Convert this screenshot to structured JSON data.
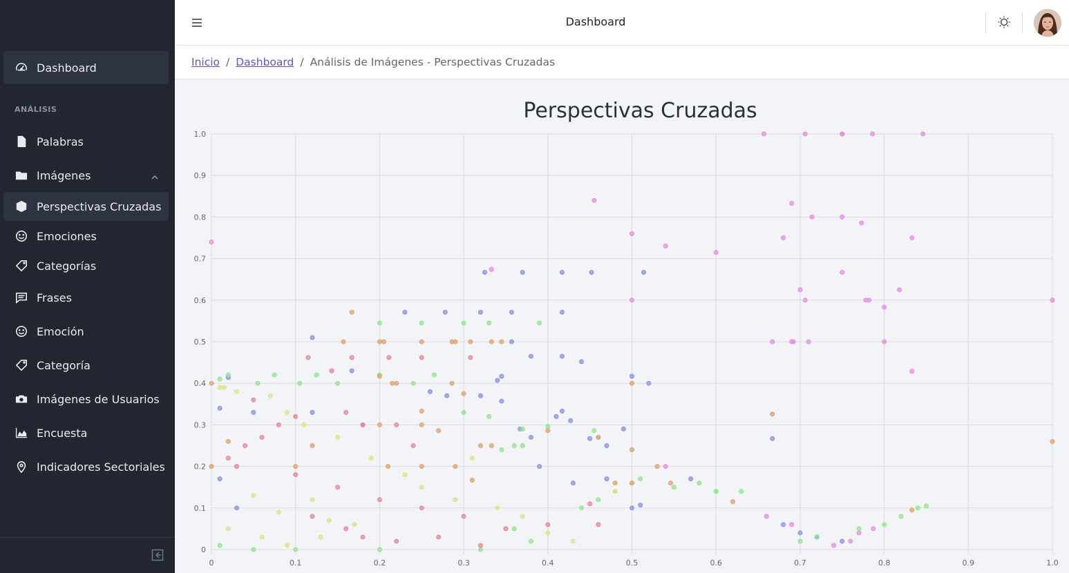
{
  "header": {
    "title": "Dashboard",
    "menu_icon": "hamburger-icon",
    "theme_icon": "sun-icon",
    "avatar": "user-avatar"
  },
  "breadcrumb": {
    "items": [
      {
        "label": "Inicio",
        "link": true
      },
      {
        "label": "Dashboard",
        "link": true
      },
      {
        "label": "Análisis de Imágenes - Perspectivas Cruzadas",
        "link": false
      }
    ]
  },
  "sidebar": {
    "dashboard": {
      "label": "Dashboard",
      "icon": "speedometer-icon"
    },
    "section_title": "ANÁLISIS",
    "items": [
      {
        "label": "Palabras",
        "icon": "file-icon"
      },
      {
        "label": "Imágenes",
        "icon": "folder-icon"
      },
      {
        "label": "Perspectivas Cruzadas",
        "icon": "cube-icon"
      },
      {
        "label": "Emociones",
        "icon": "smile-icon"
      },
      {
        "label": "Categorías",
        "icon": "tag-icon"
      },
      {
        "label": "Frases",
        "icon": "comment-icon"
      },
      {
        "label": "Emoción",
        "icon": "smile-icon"
      },
      {
        "label": "Categoría",
        "icon": "tag-icon"
      },
      {
        "label": "Imágenes de Usuarios",
        "icon": "camera-icon"
      },
      {
        "label": "Encuesta",
        "icon": "area-chart-icon"
      },
      {
        "label": "Indicadores Sectoriales",
        "icon": "location-pin-icon"
      }
    ],
    "toggler_icon": "collapse-sidebar-icon"
  },
  "colors": {
    "sidebar_bg": "#212631",
    "active_bg": "#2d3340",
    "link": "#5b54d6"
  },
  "chart_data": {
    "type": "scatter",
    "title": "Perspectivas Cruzadas",
    "xlabel": "",
    "ylabel": "",
    "xlim": [
      0,
      1
    ],
    "ylim": [
      0,
      1
    ],
    "x_ticks": [
      "0",
      "0.1",
      "0.2",
      "0.3",
      "0.4",
      "0.5",
      "0.6",
      "0.7",
      "0.8",
      "0.9",
      "1.0"
    ],
    "y_ticks": [
      "0",
      "0.1",
      "0.2",
      "0.3",
      "0.4",
      "0.5",
      "0.6",
      "0.7",
      "0.8",
      "0.9",
      "1.0"
    ],
    "grid": true,
    "legend": "none",
    "series": [
      {
        "color": "#e88be8",
        "points": [
          [
            0,
            0.74
          ],
          [
            0.455,
            0.84
          ],
          [
            0.5,
            0.76
          ],
          [
            0.54,
            0.73
          ],
          [
            0.6,
            0.715
          ],
          [
            0.657,
            1.0
          ],
          [
            0.706,
            1.0
          ],
          [
            0.75,
            1.0
          ],
          [
            0.75,
            1.0
          ],
          [
            0.786,
            1.0
          ],
          [
            0.846,
            1.0
          ],
          [
            0.69,
            0.833
          ],
          [
            0.714,
            0.8
          ],
          [
            0.75,
            0.8
          ],
          [
            0.773,
            0.786
          ],
          [
            0.68,
            0.75
          ],
          [
            0.833,
            0.75
          ],
          [
            0.333,
            0.674
          ],
          [
            0.5,
            0.6
          ],
          [
            0.7,
            0.625
          ],
          [
            0.706,
            0.6
          ],
          [
            0.75,
            0.667
          ],
          [
            0.778,
            0.6
          ],
          [
            0.782,
            0.6
          ],
          [
            0.8,
            0.583
          ],
          [
            0.818,
            0.625
          ],
          [
            1.0,
            0.6
          ],
          [
            0.667,
            0.5
          ],
          [
            0.69,
            0.5
          ],
          [
            0.692,
            0.5
          ],
          [
            0.71,
            0.5
          ],
          [
            0.8,
            0.5
          ],
          [
            0.833,
            0.429
          ],
          [
            0.66,
            0.08
          ],
          [
            0.69,
            0.06
          ],
          [
            0.74,
            0.01
          ],
          [
            0.76,
            0.02
          ],
          [
            0.787,
            0.05
          ],
          [
            0.77,
            0.04
          ],
          [
            0.72,
            0.03
          ],
          [
            0.54,
            0.2
          ]
        ]
      },
      {
        "color": "#8a90e8",
        "points": [
          [
            0.325,
            0.667
          ],
          [
            0.37,
            0.667
          ],
          [
            0.417,
            0.667
          ],
          [
            0.452,
            0.667
          ],
          [
            0.514,
            0.667
          ],
          [
            0.23,
            0.571
          ],
          [
            0.278,
            0.571
          ],
          [
            0.32,
            0.571
          ],
          [
            0.357,
            0.571
          ],
          [
            0.417,
            0.571
          ],
          [
            0.12,
            0.51
          ],
          [
            0.357,
            0.5
          ],
          [
            0.38,
            0.465
          ],
          [
            0.417,
            0.465
          ],
          [
            0.44,
            0.452
          ],
          [
            0.167,
            0.43
          ],
          [
            0.34,
            0.407
          ],
          [
            0.345,
            0.417
          ],
          [
            0.5,
            0.417
          ],
          [
            0.52,
            0.4
          ],
          [
            0.02,
            0.414
          ],
          [
            0.26,
            0.38
          ],
          [
            0.28,
            0.37
          ],
          [
            0.32,
            0.37
          ],
          [
            0.345,
            0.357
          ],
          [
            0.41,
            0.32
          ],
          [
            0.417,
            0.333
          ],
          [
            0.427,
            0.31
          ],
          [
            0.45,
            0.267
          ],
          [
            0.47,
            0.25
          ],
          [
            0.49,
            0.29
          ],
          [
            0.367,
            0.29
          ],
          [
            0.38,
            0.27
          ],
          [
            0.667,
            0.267
          ],
          [
            0.39,
            0.2
          ],
          [
            0.43,
            0.16
          ],
          [
            0.47,
            0.17
          ],
          [
            0.57,
            0.17
          ],
          [
            0.5,
            0.1
          ],
          [
            0.51,
            0.107
          ],
          [
            0.68,
            0.06
          ],
          [
            0.7,
            0.04
          ],
          [
            0.72,
            0.03
          ],
          [
            0.75,
            0.02
          ],
          [
            0.01,
            0.34
          ],
          [
            0.05,
            0.33
          ],
          [
            0.12,
            0.33
          ],
          [
            0.18,
            0.3
          ],
          [
            0.01,
            0.17
          ],
          [
            0.03,
            0.1
          ]
        ]
      },
      {
        "color": "#8ee88a",
        "points": [
          [
            0.2,
            0.545
          ],
          [
            0.25,
            0.545
          ],
          [
            0.3,
            0.545
          ],
          [
            0.33,
            0.545
          ],
          [
            0.39,
            0.545
          ],
          [
            0.01,
            0.41
          ],
          [
            0.02,
            0.42
          ],
          [
            0.075,
            0.42
          ],
          [
            0.105,
            0.4
          ],
          [
            0.125,
            0.42
          ],
          [
            0.15,
            0.4
          ],
          [
            0.2,
            0.42
          ],
          [
            0.24,
            0.4
          ],
          [
            0.265,
            0.42
          ],
          [
            0.055,
            0.4
          ],
          [
            0.3,
            0.33
          ],
          [
            0.33,
            0.32
          ],
          [
            0.37,
            0.29
          ],
          [
            0.36,
            0.25
          ],
          [
            0.345,
            0.24
          ],
          [
            0.4,
            0.296
          ],
          [
            0.455,
            0.286
          ],
          [
            0.46,
            0.27
          ],
          [
            0.37,
            0.25
          ],
          [
            0.5,
            0.16
          ],
          [
            0.51,
            0.17
          ],
          [
            0.55,
            0.15
          ],
          [
            0.58,
            0.16
          ],
          [
            0.6,
            0.14
          ],
          [
            0.6,
            0.14
          ],
          [
            0.63,
            0.14
          ],
          [
            0.77,
            0.05
          ],
          [
            0.8,
            0.06
          ],
          [
            0.82,
            0.08
          ],
          [
            0.84,
            0.1
          ],
          [
            0.85,
            0.105
          ],
          [
            0.7,
            0.02
          ],
          [
            0.72,
            0.03
          ],
          [
            0.44,
            0.1
          ],
          [
            0.46,
            0.12
          ],
          [
            0.48,
            0.14
          ],
          [
            0.01,
            0.01
          ],
          [
            0.05,
            0.0
          ],
          [
            0.1,
            0.0
          ],
          [
            0.2,
            0.0
          ],
          [
            0.32,
            0.0
          ],
          [
            0.36,
            0.05
          ],
          [
            0.38,
            0.02
          ]
        ]
      },
      {
        "color": "#e0a36b",
        "points": [
          [
            0.167,
            0.571
          ],
          [
            0.157,
            0.5
          ],
          [
            0.2,
            0.5
          ],
          [
            0.205,
            0.5
          ],
          [
            0.25,
            0.5
          ],
          [
            0.286,
            0.5
          ],
          [
            0.29,
            0.5
          ],
          [
            0.308,
            0.5
          ],
          [
            0.333,
            0.5
          ],
          [
            0.345,
            0.5
          ],
          [
            0.2,
            0.417
          ],
          [
            0.215,
            0.4
          ],
          [
            0.22,
            0.4
          ],
          [
            0.286,
            0.4
          ],
          [
            0.3,
            0.375
          ],
          [
            0.5,
            0.4
          ],
          [
            0.667,
            0.326
          ],
          [
            0.25,
            0.333
          ],
          [
            0.25,
            0.3
          ],
          [
            0.27,
            0.286
          ],
          [
            0.32,
            0.25
          ],
          [
            0.333,
            0.25
          ],
          [
            0.4,
            0.286
          ],
          [
            0.46,
            0.27
          ],
          [
            0.5,
            0.24
          ],
          [
            0.53,
            0.2
          ],
          [
            0.2,
            0.3
          ],
          [
            0.21,
            0.2
          ],
          [
            0.25,
            0.2
          ],
          [
            0.29,
            0.2
          ],
          [
            0.31,
            0.167
          ],
          [
            0.48,
            0.16
          ],
          [
            0.5,
            0.16
          ],
          [
            0.546,
            0.16
          ],
          [
            0.62,
            0.115
          ],
          [
            0.833,
            0.095
          ],
          [
            1.0,
            0.26
          ],
          [
            0.12,
            0.25
          ],
          [
            0.02,
            0.26
          ],
          [
            0.0,
            0.4
          ],
          [
            0.0,
            0.2
          ],
          [
            0.1,
            0.2
          ]
        ]
      },
      {
        "color": "#e8859a",
        "points": [
          [
            0.115,
            0.462
          ],
          [
            0.167,
            0.462
          ],
          [
            0.211,
            0.462
          ],
          [
            0.25,
            0.462
          ],
          [
            0.308,
            0.462
          ],
          [
            0.143,
            0.43
          ],
          [
            0.16,
            0.33
          ],
          [
            0.18,
            0.3
          ],
          [
            0.22,
            0.3
          ],
          [
            0.24,
            0.25
          ],
          [
            0.05,
            0.36
          ],
          [
            0.1,
            0.32
          ],
          [
            0.08,
            0.3
          ],
          [
            0.06,
            0.27
          ],
          [
            0.04,
            0.25
          ],
          [
            0.02,
            0.22
          ],
          [
            0.03,
            0.2
          ],
          [
            0.1,
            0.18
          ],
          [
            0.15,
            0.15
          ],
          [
            0.2,
            0.12
          ],
          [
            0.25,
            0.1
          ],
          [
            0.3,
            0.08
          ],
          [
            0.35,
            0.05
          ],
          [
            0.4,
            0.06
          ],
          [
            0.45,
            0.11
          ],
          [
            0.46,
            0.06
          ],
          [
            0.12,
            0.08
          ],
          [
            0.16,
            0.05
          ],
          [
            0.18,
            0.03
          ],
          [
            0.22,
            0.02
          ],
          [
            0.27,
            0.03
          ],
          [
            0.32,
            0.01
          ]
        ]
      },
      {
        "color": "#dfe28a",
        "points": [
          [
            0.01,
            0.39
          ],
          [
            0.015,
            0.39
          ],
          [
            0.03,
            0.38
          ],
          [
            0.07,
            0.37
          ],
          [
            0.09,
            0.33
          ],
          [
            0.11,
            0.3
          ],
          [
            0.15,
            0.27
          ],
          [
            0.19,
            0.22
          ],
          [
            0.23,
            0.18
          ],
          [
            0.25,
            0.15
          ],
          [
            0.29,
            0.12
          ],
          [
            0.31,
            0.22
          ],
          [
            0.34,
            0.1
          ],
          [
            0.37,
            0.08
          ],
          [
            0.4,
            0.04
          ],
          [
            0.43,
            0.02
          ],
          [
            0.48,
            0.14
          ],
          [
            0.05,
            0.13
          ],
          [
            0.08,
            0.09
          ],
          [
            0.12,
            0.12
          ],
          [
            0.14,
            0.07
          ],
          [
            0.17,
            0.06
          ],
          [
            0.02,
            0.05
          ],
          [
            0.06,
            0.03
          ],
          [
            0.09,
            0.01
          ],
          [
            0.13,
            0.03
          ]
        ]
      }
    ]
  }
}
